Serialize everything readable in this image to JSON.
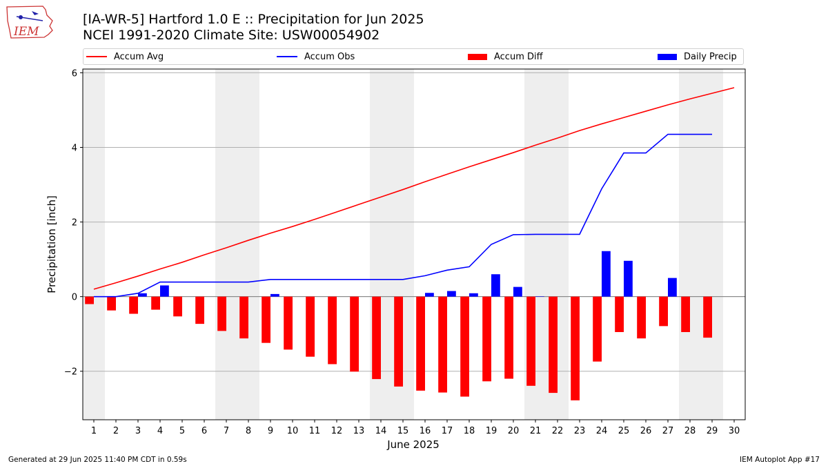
{
  "header": {
    "title_line1": "[IA-WR-5] Hartford 1.0 E :: Precipitation for Jun 2025",
    "title_line2": "NCEI 1991-2020 Climate Site: USW00054902",
    "logo_text": "IEM"
  },
  "legend": [
    {
      "label": "Accum Avg",
      "kind": "line",
      "color": "#ff0000"
    },
    {
      "label": "Accum Obs",
      "kind": "line",
      "color": "#0000ff"
    },
    {
      "label": "Accum Diff",
      "kind": "patch",
      "color": "#ff0000"
    },
    {
      "label": "Daily Precip",
      "kind": "patch",
      "color": "#0000ff"
    }
  ],
  "footer": {
    "left": "Generated at 29 Jun 2025 11:40 PM CDT in 0.59s",
    "right": "IEM Autoplot App #17"
  },
  "chart_data": {
    "type": "bar",
    "xlabel": "June 2025",
    "ylabel": "Precipitation [inch]",
    "xlim": [
      0.5,
      30.5
    ],
    "ylim": [
      -3.3,
      6.1
    ],
    "xticks": [
      1,
      2,
      3,
      4,
      5,
      6,
      7,
      8,
      9,
      10,
      11,
      12,
      13,
      14,
      15,
      16,
      17,
      18,
      19,
      20,
      21,
      22,
      23,
      24,
      25,
      26,
      27,
      28,
      29,
      30
    ],
    "yticks": [
      -2,
      0,
      2,
      4,
      6
    ],
    "grid": "horizontal",
    "weekend_shading": [
      [
        0.5,
        1.5
      ],
      [
        6.5,
        8.5
      ],
      [
        13.5,
        15.5
      ],
      [
        20.5,
        22.5
      ],
      [
        27.5,
        29.5
      ]
    ],
    "series": [
      {
        "name": "Accum Avg",
        "type": "line",
        "color": "#ff0000",
        "x": [
          1,
          2,
          3,
          4,
          5,
          6,
          7,
          8,
          9,
          10,
          11,
          12,
          13,
          14,
          15,
          16,
          17,
          18,
          19,
          20,
          21,
          22,
          23,
          24,
          25,
          26,
          27,
          28,
          29,
          30
        ],
        "values": [
          0.2,
          0.37,
          0.55,
          0.74,
          0.92,
          1.12,
          1.31,
          1.51,
          1.7,
          1.88,
          2.07,
          2.27,
          2.47,
          2.67,
          2.87,
          3.08,
          3.28,
          3.48,
          3.67,
          3.86,
          4.06,
          4.25,
          4.45,
          4.63,
          4.8,
          4.97,
          5.14,
          5.3,
          5.45,
          5.6
        ]
      },
      {
        "name": "Accum Obs",
        "type": "line",
        "color": "#0000ff",
        "x": [
          1,
          2,
          3,
          4,
          5,
          6,
          7,
          8,
          9,
          10,
          11,
          12,
          13,
          14,
          15,
          16,
          17,
          18,
          19,
          20,
          21,
          22,
          23,
          24,
          25,
          26,
          27,
          28,
          29
        ],
        "values": [
          0.0,
          0.0,
          0.09,
          0.39,
          0.39,
          0.39,
          0.39,
          0.39,
          0.46,
          0.46,
          0.46,
          0.46,
          0.46,
          0.46,
          0.46,
          0.56,
          0.71,
          0.8,
          1.4,
          1.66,
          1.67,
          1.67,
          1.67,
          2.89,
          3.85,
          3.85,
          4.35,
          4.35,
          4.35
        ]
      },
      {
        "name": "Accum Diff",
        "type": "bar",
        "color": "#ff0000",
        "x": [
          1,
          2,
          3,
          4,
          5,
          6,
          7,
          8,
          9,
          10,
          11,
          12,
          13,
          14,
          15,
          16,
          17,
          18,
          19,
          20,
          21,
          22,
          23,
          24,
          25,
          26,
          27,
          28,
          29
        ],
        "values": [
          -0.2,
          -0.37,
          -0.46,
          -0.35,
          -0.53,
          -0.73,
          -0.92,
          -1.12,
          -1.24,
          -1.42,
          -1.61,
          -1.81,
          -2.01,
          -2.21,
          -2.41,
          -2.52,
          -2.57,
          -2.68,
          -2.27,
          -2.2,
          -2.39,
          -2.58,
          -2.78,
          -1.74,
          -0.95,
          -1.12,
          -0.79,
          -0.95,
          -1.1
        ]
      },
      {
        "name": "Daily Precip",
        "type": "bar",
        "color": "#0000ff",
        "x": [
          1,
          2,
          3,
          4,
          5,
          6,
          7,
          8,
          9,
          10,
          11,
          12,
          13,
          14,
          15,
          16,
          17,
          18,
          19,
          20,
          21,
          22,
          23,
          24,
          25,
          26,
          27,
          28,
          29
        ],
        "values": [
          0,
          0,
          0.09,
          0.3,
          0,
          0,
          0,
          0,
          0.07,
          0,
          0,
          0,
          0,
          0,
          0,
          0.1,
          0.15,
          0.09,
          0.6,
          0.26,
          0.01,
          0,
          0,
          1.22,
          0.96,
          0,
          0.5,
          0,
          0
        ]
      }
    ]
  }
}
